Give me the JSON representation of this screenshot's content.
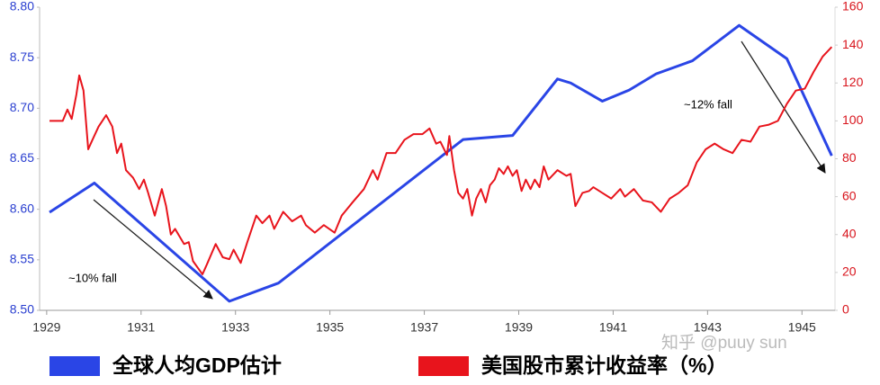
{
  "chart_data": {
    "type": "line",
    "xlim": [
      1928.85,
      1945.7
    ],
    "xticks": [
      1929,
      1931,
      1933,
      1935,
      1937,
      1939,
      1941,
      1943,
      1945
    ],
    "ylim": [
      8.5,
      8.8
    ],
    "yticks": [
      {
        "value": 8.5,
        "label": "8.50"
      },
      8.55,
      {
        "value": 8.6,
        "label": "8.60"
      },
      8.65,
      {
        "value": 8.7,
        "label": "8.70"
      },
      8.75,
      {
        "value": 8.8,
        "label": "8.80"
      }
    ],
    "y2lim": [
      0,
      160
    ],
    "y2ticks": [
      0,
      20,
      40,
      60,
      80,
      100,
      120,
      140,
      160
    ],
    "series": [
      {
        "name": "全球人均GDP估计",
        "color": "#2a45e6",
        "axis": "y",
        "x": [
          1929.06,
          1930.01,
          1932.87,
          1933.91,
          1937.82,
          1938.87,
          1939.82,
          1940.1,
          1940.77,
          1941.34,
          1941.91,
          1942.68,
          1943.67,
          1944.68,
          1945.63
        ],
        "values": [
          8.597,
          8.626,
          8.509,
          8.527,
          8.669,
          8.673,
          8.729,
          8.725,
          8.707,
          8.718,
          8.734,
          8.747,
          8.782,
          8.749,
          8.653
        ]
      },
      {
        "name": "美国股市累计收益率（%）",
        "color": "#e8141c",
        "axis": "y2",
        "x": [
          1929.06,
          1929.34,
          1929.44,
          1929.53,
          1929.63,
          1929.69,
          1929.78,
          1929.88,
          1929.97,
          1930.1,
          1930.26,
          1930.39,
          1930.49,
          1930.58,
          1930.68,
          1930.83,
          1930.96,
          1931.06,
          1931.15,
          1931.29,
          1931.44,
          1931.53,
          1931.63,
          1931.72,
          1931.91,
          1932.01,
          1932.1,
          1932.3,
          1932.39,
          1932.58,
          1932.73,
          1932.87,
          1932.96,
          1933.11,
          1933.25,
          1933.44,
          1933.57,
          1933.72,
          1933.82,
          1934.01,
          1934.2,
          1934.39,
          1934.49,
          1934.68,
          1934.87,
          1935.1,
          1935.25,
          1935.48,
          1935.72,
          1935.91,
          1936.01,
          1936.2,
          1936.39,
          1936.58,
          1936.77,
          1936.96,
          1937.11,
          1937.25,
          1937.34,
          1937.48,
          1937.53,
          1937.63,
          1937.72,
          1937.82,
          1937.91,
          1938.01,
          1938.1,
          1938.2,
          1938.3,
          1938.39,
          1938.49,
          1938.58,
          1938.68,
          1938.77,
          1938.87,
          1938.96,
          1939.06,
          1939.15,
          1939.25,
          1939.34,
          1939.44,
          1939.53,
          1939.63,
          1939.82,
          1940.01,
          1940.1,
          1940.2,
          1940.35,
          1940.49,
          1940.58,
          1940.77,
          1940.96,
          1941.15,
          1941.25,
          1941.44,
          1941.63,
          1941.82,
          1942.01,
          1942.2,
          1942.39,
          1942.58,
          1942.77,
          1942.96,
          1943.15,
          1943.34,
          1943.53,
          1943.72,
          1943.91,
          1944.1,
          1944.3,
          1944.49,
          1944.68,
          1944.87,
          1945.06,
          1945.25,
          1945.44,
          1945.63
        ],
        "values": [
          100,
          100,
          106,
          101,
          114,
          124,
          116,
          85,
          90,
          97,
          103,
          97,
          83,
          88,
          74,
          70,
          64,
          69,
          62,
          50,
          64,
          55,
          40,
          43,
          35,
          36,
          26,
          19,
          24,
          35,
          28,
          27,
          32,
          25,
          36,
          50,
          46,
          50,
          43,
          52,
          47,
          50,
          45,
          41,
          45,
          41,
          50,
          57,
          64,
          74,
          69,
          83,
          83,
          90,
          93,
          93,
          96,
          88,
          89,
          82,
          92,
          74,
          62,
          59,
          64,
          50,
          59,
          64,
          57,
          66,
          69,
          75,
          72,
          76,
          71,
          74,
          63,
          69,
          64,
          69,
          65,
          76,
          69,
          74,
          71,
          72,
          55,
          62,
          63,
          65,
          62,
          59,
          64,
          60,
          64,
          58,
          57,
          52,
          59,
          62,
          66,
          78,
          85,
          88,
          85,
          83,
          90,
          89,
          97,
          98,
          100,
          109,
          116,
          117,
          126,
          134,
          139
        ]
      }
    ],
    "annotations": [
      "~10% fall",
      "~12% fall"
    ],
    "watermark": "知乎 @puuy sun"
  }
}
